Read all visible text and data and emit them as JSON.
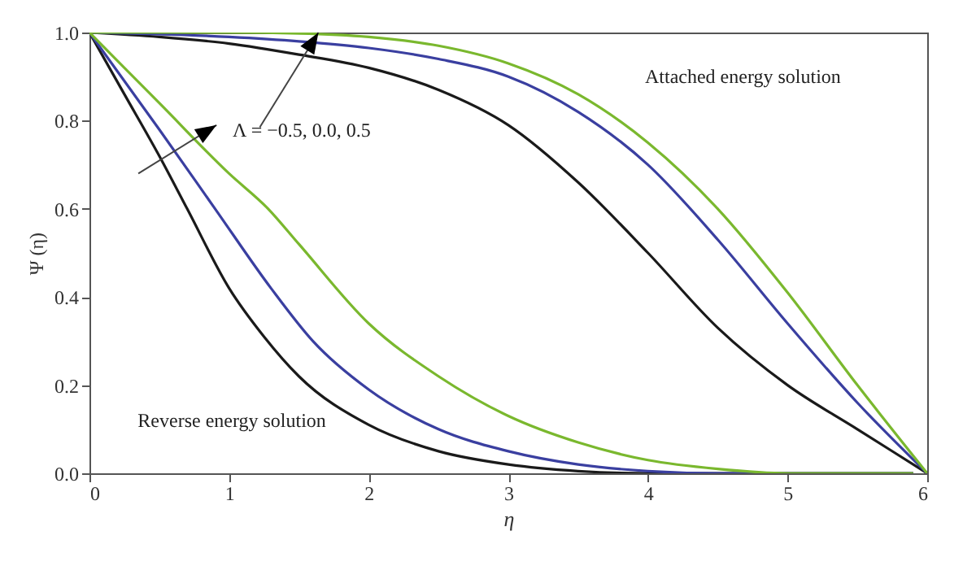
{
  "chart_data": {
    "type": "line",
    "xlabel": "η",
    "ylabel": "Ψ (η)",
    "xlim": [
      0,
      6
    ],
    "xticks": [
      0,
      1,
      2,
      3,
      4,
      5,
      6
    ],
    "ylim": [
      0,
      1
    ],
    "yticks": [
      {
        "value": 0,
        "label": "0.0"
      },
      {
        "value": 0.2,
        "label": "0.2"
      },
      {
        "value": 0.4,
        "label": "0.4"
      },
      {
        "value": 0.6,
        "label": "0.6"
      },
      {
        "value": 0.8,
        "label": "0.8"
      },
      {
        "value": 1,
        "label": "1.0"
      }
    ],
    "annotations": [
      "Attached energy solution",
      "Reverse energy solution",
      {
        "text": "Λ = −0.5, 0.0, 0.5",
        "x": 1.64,
        "y": 1.0
      }
    ],
    "series": [
      {
        "color": "#1a1a1a",
        "x": [
          0,
          0.5,
          1,
          1.5,
          2,
          2.5,
          3,
          3.5,
          4,
          4.5,
          5,
          5.5,
          6
        ],
        "values": [
          1,
          0.99,
          0.975,
          0.95,
          0.92,
          0.87,
          0.79,
          0.66,
          0.5,
          0.33,
          0.2,
          0.1,
          0
        ]
      },
      {
        "color": "#3a3fa0",
        "x": [
          0,
          1,
          1.5,
          2,
          2.5,
          3,
          3.5,
          4,
          4.5,
          5,
          5.5,
          6
        ],
        "values": [
          1,
          0.99,
          0.98,
          0.965,
          0.94,
          0.9,
          0.82,
          0.7,
          0.53,
          0.34,
          0.16,
          0
        ]
      },
      {
        "color": "#7ab82e",
        "x": [
          0,
          1,
          1.5,
          2,
          2.5,
          3,
          3.5,
          4,
          4.5,
          5,
          5.5,
          6
        ],
        "values": [
          1,
          1,
          0.998,
          0.99,
          0.97,
          0.93,
          0.86,
          0.75,
          0.6,
          0.41,
          0.2,
          0
        ]
      },
      {
        "color": "#1a1a1a",
        "x": [
          0,
          0.25,
          0.5,
          0.7,
          1,
          1.25,
          1.5,
          2,
          2.5,
          3,
          3.5,
          4,
          5.9
        ],
        "values": [
          1,
          0.86,
          0.72,
          0.6,
          0.42,
          0.31,
          0.22,
          0.11,
          0.05,
          0.02,
          0.005,
          0,
          0
        ]
      },
      {
        "color": "#3a3fa0",
        "x": [
          0,
          0.5,
          0.9,
          1.3,
          1.6,
          2,
          2.5,
          3,
          3.5,
          4,
          4.5,
          5.9
        ],
        "values": [
          1,
          0.78,
          0.6,
          0.42,
          0.3,
          0.19,
          0.1,
          0.05,
          0.02,
          0.005,
          0,
          0
        ]
      },
      {
        "color": "#7ab82e",
        "x": [
          0,
          0.5,
          1,
          1.28,
          1.5,
          2,
          2.5,
          3,
          3.5,
          4,
          4.5,
          5,
          5.9
        ],
        "values": [
          1,
          0.84,
          0.68,
          0.6,
          0.52,
          0.34,
          0.22,
          0.13,
          0.07,
          0.03,
          0.01,
          0,
          0
        ]
      }
    ]
  }
}
